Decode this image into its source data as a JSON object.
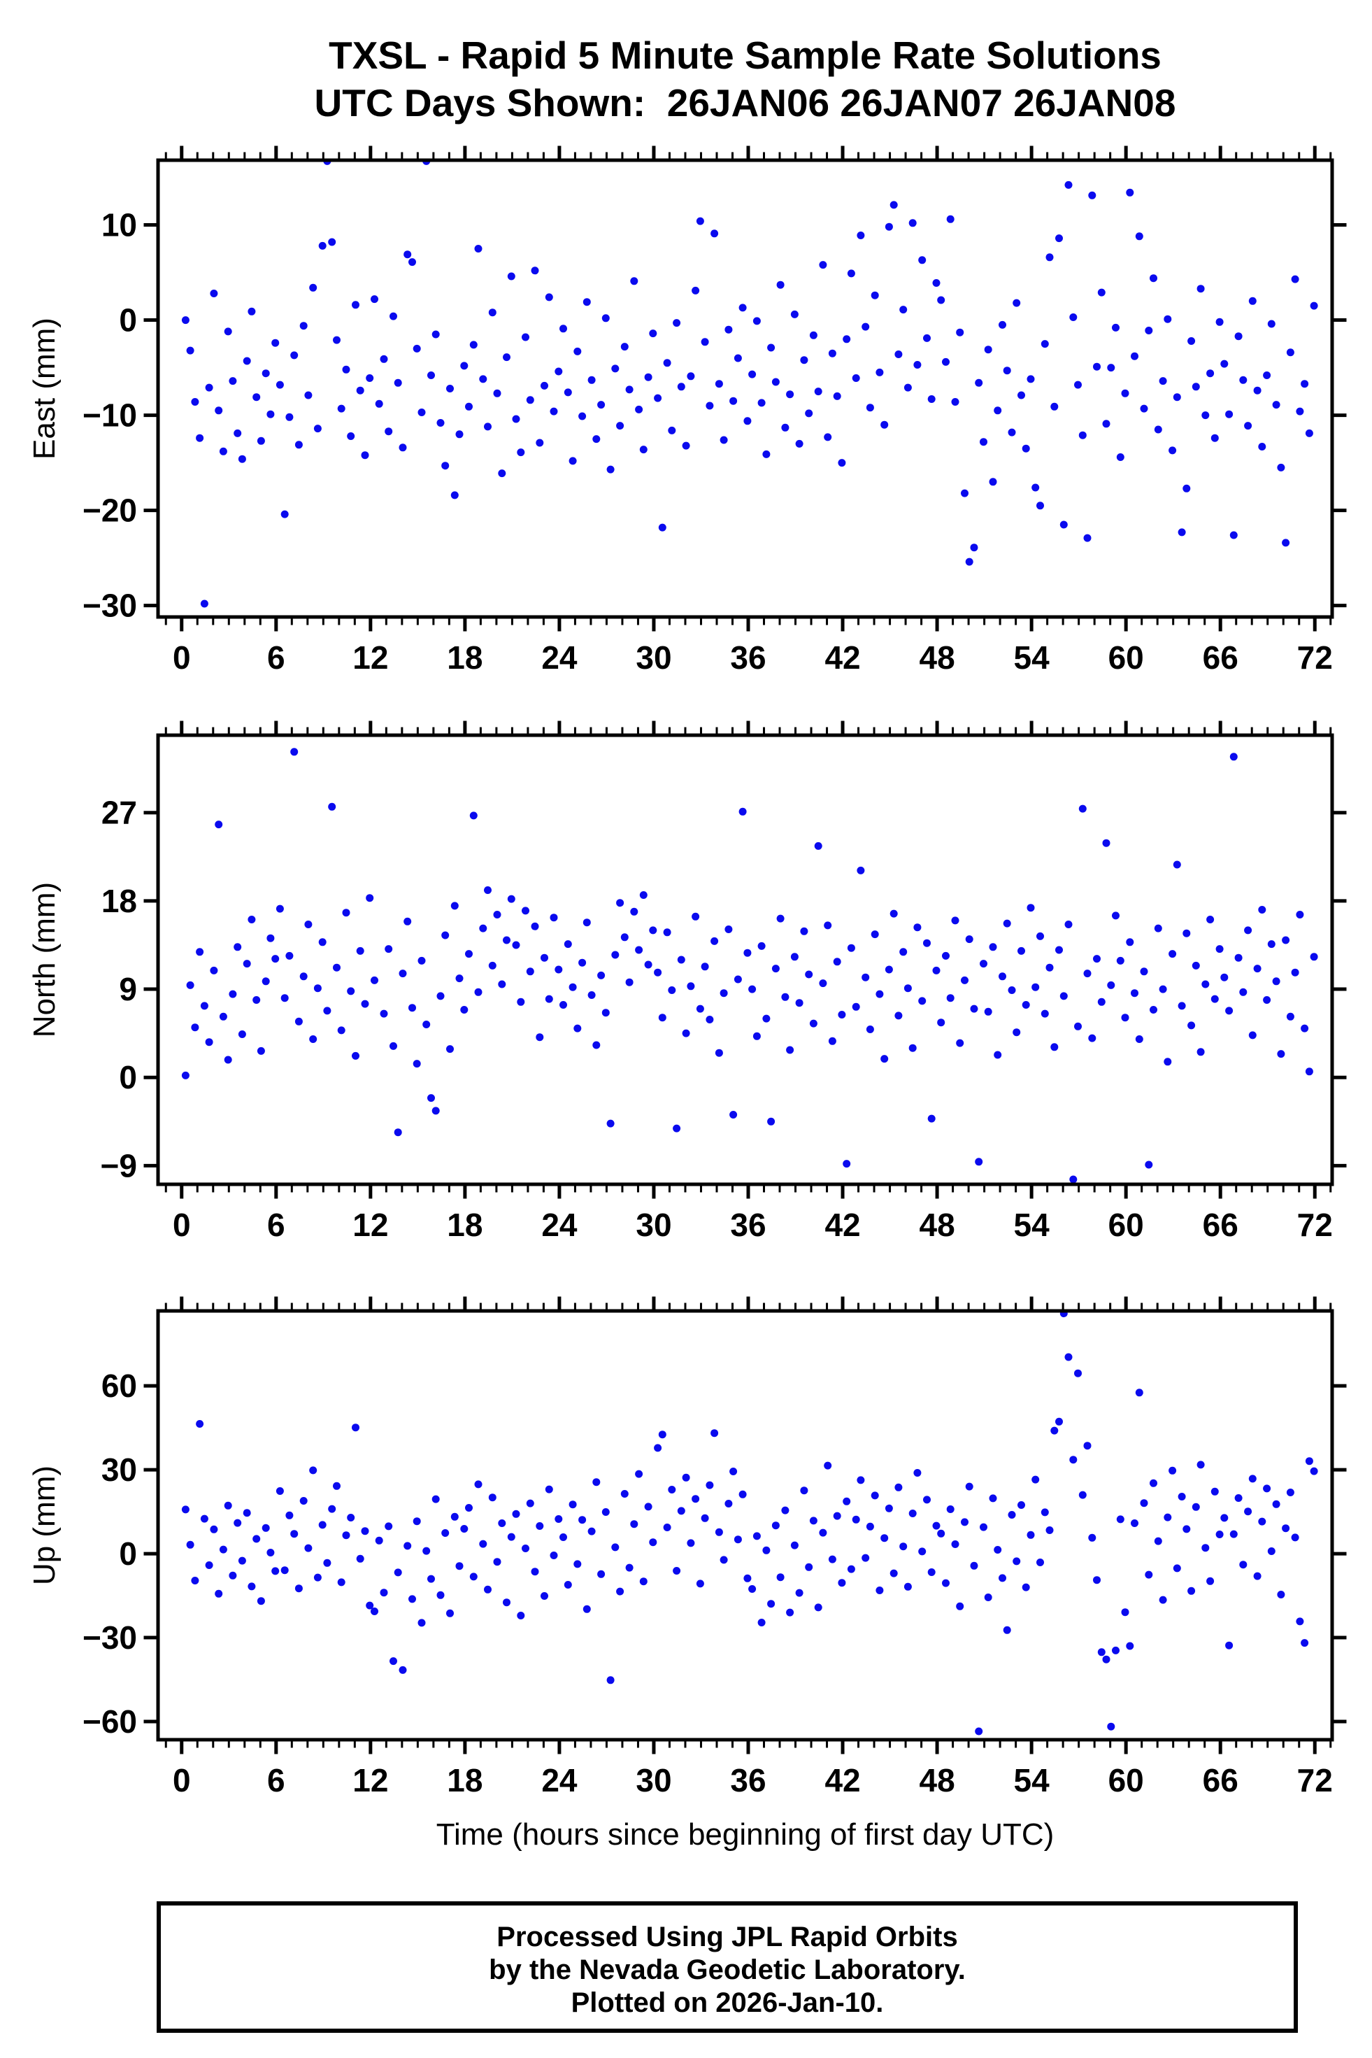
{
  "title": {
    "line1": "TXSL - Rapid 5 Minute Sample Rate Solutions",
    "line2": "UTC Days Shown:  26JAN06 26JAN07 26JAN08"
  },
  "footer": {
    "line1": "Processed Using JPL Rapid Orbits",
    "line2": "by the Nevada Geodetic Laboratory.",
    "line3": "Plotted on 2026-Jan-10."
  },
  "colors": {
    "point": "#0a0aee",
    "axis": "#000000",
    "background": "#ffffff"
  },
  "chart_data": [
    {
      "type": "scatter",
      "ylabel": "East (mm)",
      "xlabel": "",
      "ylim": [
        -31.2,
        16.8
      ],
      "yticks": [
        10,
        0,
        -10,
        -20,
        -30
      ],
      "xlim": [
        -1.5,
        73.1
      ],
      "xticks": [
        0,
        6,
        12,
        18,
        24,
        30,
        36,
        42,
        48,
        54,
        60,
        66,
        72
      ],
      "x_minor_step": 1,
      "x_start": 0.25,
      "x_step": 0.3,
      "y": [
        0.0,
        -3.2,
        -8.6,
        -12.4,
        -29.8,
        -7.1,
        2.8,
        -9.5,
        -13.8,
        -1.2,
        -6.4,
        -11.9,
        -14.6,
        -4.3,
        0.9,
        -8.1,
        -12.7,
        -5.6,
        -9.9,
        -2.4,
        -6.8,
        -20.4,
        -10.2,
        -3.7,
        -13.1,
        -0.6,
        -7.9,
        3.4,
        -11.4,
        7.8,
        16.7,
        8.2,
        -2.1,
        -9.3,
        -5.2,
        -12.2,
        1.6,
        -7.4,
        -14.2,
        -6.1,
        2.2,
        -8.8,
        -4.1,
        -11.7,
        0.4,
        -6.6,
        -13.4,
        6.9,
        6.1,
        -3.0,
        -9.7,
        16.7,
        -5.8,
        -1.5,
        -10.8,
        -15.3,
        -7.2,
        -18.4,
        -12.0,
        -4.8,
        -9.1,
        -2.6,
        7.5,
        -6.2,
        -11.2,
        0.8,
        -7.7,
        -16.1,
        -3.9,
        4.6,
        -10.4,
        -13.9,
        -1.8,
        -8.4,
        5.2,
        -12.9,
        -6.9,
        2.4,
        -9.6,
        -5.4,
        -0.9,
        -7.6,
        -14.8,
        -3.3,
        -10.1,
        1.9,
        -6.3,
        -12.5,
        -8.9,
        0.2,
        -15.7,
        -5.1,
        -11.1,
        -2.8,
        -7.3,
        4.1,
        -9.4,
        -13.6,
        -6.0,
        -1.4,
        -8.2,
        -21.8,
        -4.5,
        -11.6,
        -0.3,
        -7.0,
        -13.2,
        -5.9,
        3.1,
        10.4,
        -2.3,
        -9.0,
        9.1,
        -6.7,
        -12.6,
        -1.0,
        -8.5,
        -4.0,
        1.3,
        -10.6,
        -5.7,
        -0.1,
        -8.7,
        -14.1,
        -2.9,
        -6.5,
        3.7,
        -11.3,
        -7.8,
        0.6,
        -13.0,
        -4.2,
        -9.8,
        -1.6,
        -7.5,
        5.8,
        -12.3,
        -3.5,
        -8.0,
        -15.0,
        -2.0,
        4.9,
        -6.1,
        8.9,
        -0.7,
        -9.2,
        2.6,
        -5.5,
        -11.0,
        9.8,
        12.1,
        -3.6,
        1.1,
        -7.1,
        10.2,
        -4.7,
        6.3,
        -1.9,
        -8.3,
        3.9,
        2.1,
        -4.4,
        10.6,
        -8.6,
        -1.3,
        -18.2,
        -25.4,
        -23.9,
        -6.6,
        -12.8,
        -3.1,
        -17.0,
        -9.5,
        -0.5,
        -5.3,
        -11.8,
        1.8,
        -7.9,
        -13.5,
        -6.2,
        -17.6,
        -19.5,
        -2.5,
        6.6,
        -9.1,
        8.6,
        -21.5,
        14.2,
        0.3,
        -6.8,
        -12.1,
        -22.9,
        13.1,
        -4.9,
        2.9,
        -10.9,
        -5.0,
        -0.8,
        -14.4,
        -7.7,
        13.4,
        -3.8,
        8.8,
        -9.3,
        -1.1,
        4.4,
        -11.5,
        -6.4,
        0.1,
        -13.7,
        -8.1,
        -22.3,
        -17.7,
        -2.2,
        -7.0,
        3.3,
        -10.0,
        -5.6,
        -12.4,
        -0.2,
        -4.6,
        -9.9,
        -22.6,
        -1.7,
        -6.3,
        -11.1,
        2.0,
        -7.4,
        -13.3,
        -5.8,
        -0.4,
        -8.9,
        -15.5,
        -23.4,
        -3.4,
        4.3,
        -9.6,
        -6.7,
        -11.9,
        1.5
      ]
    },
    {
      "type": "scatter",
      "ylabel": "North (mm)",
      "xlabel": "",
      "ylim": [
        -10.9,
        34.9
      ],
      "yticks": [
        27,
        18,
        9,
        0,
        -9
      ],
      "xlim": [
        -1.5,
        73.1
      ],
      "xticks": [
        0,
        6,
        12,
        18,
        24,
        30,
        36,
        42,
        48,
        54,
        60,
        66,
        72
      ],
      "x_minor_step": 1,
      "x_start": 0.25,
      "x_step": 0.3,
      "y": [
        0.2,
        9.4,
        5.1,
        12.8,
        7.3,
        3.6,
        10.9,
        25.8,
        6.2,
        1.8,
        8.5,
        13.3,
        4.4,
        11.6,
        16.1,
        7.9,
        2.7,
        9.8,
        14.2,
        12.1,
        17.2,
        8.1,
        12.4,
        33.2,
        5.7,
        10.3,
        15.6,
        3.9,
        9.1,
        13.8,
        6.8,
        27.6,
        11.2,
        4.8,
        16.8,
        8.8,
        2.2,
        12.9,
        7.5,
        18.3,
        9.9,
        -11.2,
        6.5,
        13.1,
        3.2,
        -5.6,
        10.6,
        15.9,
        7.1,
        1.4,
        11.9,
        5.4,
        -2.1,
        -3.4,
        8.3,
        14.5,
        2.9,
        17.5,
        10.1,
        6.9,
        12.6,
        26.7,
        8.7,
        15.2,
        19.1,
        11.4,
        16.6,
        9.5,
        14.0,
        18.2,
        13.5,
        7.7,
        17.0,
        10.8,
        15.4,
        4.1,
        12.2,
        8.0,
        16.3,
        11.0,
        7.4,
        13.6,
        9.2,
        5.0,
        11.7,
        15.8,
        8.4,
        3.3,
        10.4,
        6.6,
        -4.7,
        12.5,
        17.8,
        14.3,
        9.7,
        16.9,
        13.0,
        18.6,
        11.5,
        15.0,
        10.7,
        6.1,
        14.8,
        8.9,
        -5.2,
        12.0,
        4.5,
        9.3,
        16.4,
        7.0,
        11.3,
        5.9,
        13.9,
        2.5,
        8.6,
        15.1,
        -3.8,
        10.0,
        27.1,
        12.7,
        9.0,
        4.2,
        13.4,
        6.0,
        -4.5,
        11.1,
        16.2,
        8.2,
        2.8,
        12.3,
        7.6,
        14.9,
        10.5,
        5.5,
        23.6,
        9.6,
        15.5,
        3.7,
        11.8,
        6.4,
        -8.8,
        13.2,
        7.2,
        21.1,
        10.2,
        4.9,
        14.6,
        8.5,
        1.9,
        11.0,
        16.7,
        6.3,
        12.8,
        9.1,
        3.0,
        15.3,
        7.8,
        13.7,
        -4.2,
        10.9,
        5.6,
        12.4,
        8.1,
        16.0,
        3.5,
        9.9,
        14.1,
        7.0,
        -8.6,
        11.6,
        6.7,
        13.3,
        2.3,
        10.3,
        15.7,
        8.9,
        4.6,
        12.9,
        7.4,
        17.3,
        9.2,
        14.4,
        6.5,
        11.2,
        3.1,
        13.0,
        8.3,
        15.6,
        -10.4,
        5.2,
        27.4,
        10.6,
        4.0,
        12.1,
        7.7,
        23.9,
        9.4,
        16.5,
        11.9,
        6.1,
        13.8,
        8.6,
        3.9,
        10.8,
        -8.9,
        6.9,
        15.2,
        9.0,
        1.6,
        12.6,
        21.7,
        7.3,
        14.7,
        5.3,
        11.4,
        2.6,
        9.5,
        16.1,
        8.0,
        13.1,
        10.2,
        6.8,
        32.7,
        12.2,
        8.7,
        15.0,
        4.3,
        11.1,
        17.1,
        7.9,
        13.6,
        9.8,
        2.4,
        14.0,
        6.2,
        10.7,
        16.6,
        5.0,
        0.6,
        12.3
      ]
    },
    {
      "type": "scatter",
      "ylabel": "Up (mm)",
      "xlabel": "Time (hours since beginning of first day UTC)",
      "ylim": [
        -66.5,
        86.8
      ],
      "yticks": [
        60,
        30,
        0,
        -30,
        -60
      ],
      "xlim": [
        -1.5,
        73.1
      ],
      "xticks": [
        0,
        6,
        12,
        18,
        24,
        30,
        36,
        42,
        48,
        54,
        60,
        66,
        72
      ],
      "x_minor_step": 1,
      "x_start": 0.25,
      "x_step": 0.3,
      "y": [
        15.8,
        3.2,
        -9.6,
        46.4,
        12.5,
        -4.1,
        8.7,
        -14.3,
        1.5,
        17.2,
        -7.8,
        11.0,
        -2.5,
        14.6,
        -11.7,
        5.3,
        -16.9,
        9.2,
        0.4,
        -6.2,
        22.4,
        -5.9,
        13.7,
        7.1,
        -12.4,
        18.9,
        2.0,
        29.8,
        -8.5,
        10.3,
        -3.3,
        16.0,
        24.2,
        -10.2,
        6.6,
        12.9,
        45.1,
        -1.8,
        8.1,
        -18.5,
        -20.6,
        4.7,
        -13.9,
        9.8,
        -38.4,
        -6.7,
        -41.6,
        2.8,
        -16.2,
        11.6,
        -24.7,
        1.0,
        -9.0,
        19.5,
        -14.8,
        7.4,
        -21.3,
        13.2,
        -4.4,
        8.9,
        16.4,
        -8.2,
        24.8,
        3.5,
        -12.8,
        20.1,
        -2.9,
        10.9,
        -17.4,
        6.0,
        14.2,
        -22.1,
        1.9,
        18.0,
        -6.4,
        9.9,
        -15.1,
        23.0,
        -0.6,
        12.4,
        5.9,
        -11.1,
        17.6,
        -3.7,
        12.1,
        -19.8,
        8.0,
        25.6,
        -7.3,
        14.9,
        -45.2,
        2.3,
        -13.5,
        21.4,
        -5.0,
        10.6,
        28.5,
        -9.9,
        16.8,
        4.1,
        37.8,
        42.6,
        9.4,
        22.9,
        -6.1,
        15.3,
        27.2,
        3.8,
        19.6,
        -10.7,
        12.7,
        24.5,
        43.1,
        7.7,
        -2.2,
        17.9,
        29.4,
        5.1,
        21.2,
        -8.8,
        -12.6,
        6.3,
        -24.6,
        1.2,
        -17.9,
        10.1,
        -8.4,
        15.5,
        -21.0,
        3.0,
        -14.0,
        22.6,
        -4.8,
        11.8,
        -19.2,
        7.5,
        31.5,
        -2.0,
        13.5,
        -10.4,
        18.7,
        -5.5,
        12.2,
        26.3,
        -1.5,
        9.7,
        20.8,
        -13.1,
        5.6,
        16.2,
        -7.0,
        23.7,
        2.6,
        -11.8,
        14.4,
        28.9,
        0.8,
        19.3,
        -6.6,
        10.0,
        7.2,
        -10.5,
        15.9,
        3.4,
        -18.8,
        11.3,
        24.0,
        -4.3,
        -63.5,
        9.5,
        -15.6,
        19.8,
        1.4,
        -8.7,
        -27.3,
        13.9,
        -2.7,
        17.4,
        -12.0,
        6.7,
        26.5,
        -3.1,
        14.8,
        8.4,
        44.0,
        47.2,
        85.9,
        70.3,
        33.6,
        64.5,
        21.0,
        38.6,
        5.7,
        -9.4,
        -35.2,
        -37.8,
        -61.8,
        -34.6,
        12.3,
        -20.9,
        -33.0,
        10.9,
        57.6,
        18.1,
        -7.5,
        25.2,
        4.5,
        -16.5,
        13.0,
        29.7,
        -5.2,
        20.4,
        8.8,
        -13.3,
        16.7,
        31.8,
        2.1,
        -9.8,
        22.2,
        6.9,
        12.8,
        -32.8,
        7.0,
        19.9,
        -3.9,
        15.1,
        26.8,
        -8.0,
        11.5,
        23.3,
        0.9,
        17.7,
        -14.6,
        9.1,
        21.9,
        5.8,
        -24.2,
        -31.9,
        33.1,
        29.5
      ]
    }
  ]
}
